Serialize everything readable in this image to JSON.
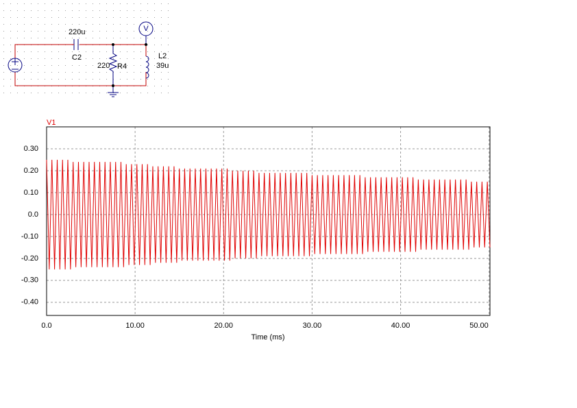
{
  "schematic": {
    "capacitor_value": "220u",
    "capacitor_name": "C2",
    "resistor_value": "220",
    "resistor_name": "R4",
    "inductor_name": "L2",
    "inductor_value": "39u",
    "meter": "V"
  },
  "chart_data": {
    "type": "line",
    "y_label": "V1",
    "x_label": "Time (ms)",
    "x": [
      0,
      0.3,
      0.6,
      0.9,
      1.2,
      1.5,
      1.8,
      2.1,
      2.4,
      2.7,
      3,
      3.3,
      3.6,
      3.9,
      4.2,
      4.5,
      4.8,
      5.1,
      5.4,
      5.7,
      6,
      6.3,
      6.6,
      6.9,
      7.2,
      7.5,
      7.8,
      8.1,
      8.4,
      8.7,
      9,
      9.3,
      9.6,
      9.9,
      10.2,
      10.5,
      10.8,
      11.1,
      11.4,
      11.7,
      12,
      12.3,
      12.6,
      12.9,
      13.2,
      13.5,
      13.8,
      14.1,
      14.4,
      14.7,
      15,
      15.3,
      15.6,
      15.9,
      16.2,
      16.5,
      16.8,
      17.1,
      17.4,
      17.7,
      18,
      18.3,
      18.6,
      18.9,
      19.2,
      19.5,
      19.8,
      20.1,
      20.4,
      20.7,
      21,
      21.3,
      21.6,
      21.9,
      22.2,
      22.5,
      22.8,
      23.1,
      23.4,
      23.7,
      24,
      24.3,
      24.6,
      24.9,
      25.2,
      25.5,
      25.8,
      26.1,
      26.4,
      26.7,
      27,
      27.3,
      27.6,
      27.9,
      28.2,
      28.5,
      28.8,
      29.1,
      29.4,
      29.7,
      30,
      30.3,
      30.6,
      30.9,
      31.2,
      31.5,
      31.8,
      32.1,
      32.4,
      32.7,
      33,
      33.3,
      33.6,
      33.9,
      34.2,
      34.5,
      34.8,
      35.1,
      35.4,
      35.7,
      36,
      36.3,
      36.6,
      36.9,
      37.2,
      37.5,
      37.8,
      38.1,
      38.4,
      38.7,
      39,
      39.3,
      39.6,
      39.9,
      40.2,
      40.5,
      40.8,
      41.1,
      41.4,
      41.7,
      42,
      42.3,
      42.6,
      42.9,
      43.2,
      43.5,
      43.8,
      44.1,
      44.4,
      44.7,
      45,
      45.3,
      45.6,
      45.9,
      46.2,
      46.5,
      46.8,
      47.1,
      47.4,
      47.7,
      48,
      48.3,
      48.6,
      48.9,
      49.2,
      49.5,
      49.8,
      50.1
    ],
    "series": [
      {
        "name": "V1",
        "color": "#e00000",
        "values": [
          0.25,
          -0.25,
          0.25,
          -0.25,
          0.25,
          -0.25,
          0.25,
          -0.25,
          0.25,
          -0.25,
          0.24,
          -0.24,
          0.24,
          -0.24,
          0.24,
          -0.24,
          0.24,
          -0.24,
          0.24,
          -0.24,
          0.24,
          -0.24,
          0.24,
          -0.24,
          0.24,
          -0.24,
          0.24,
          -0.24,
          0.24,
          -0.24,
          0.23,
          -0.23,
          0.23,
          -0.23,
          0.23,
          -0.23,
          0.23,
          -0.23,
          0.23,
          -0.23,
          0.22,
          -0.22,
          0.22,
          -0.22,
          0.22,
          -0.22,
          0.22,
          -0.22,
          0.22,
          -0.22,
          0.21,
          -0.21,
          0.21,
          -0.21,
          0.21,
          -0.21,
          0.21,
          -0.21,
          0.21,
          -0.21,
          0.21,
          -0.21,
          0.21,
          -0.21,
          0.21,
          -0.21,
          0.21,
          -0.21,
          0.21,
          -0.21,
          0.2,
          -0.2,
          0.2,
          -0.2,
          0.2,
          -0.2,
          0.2,
          -0.2,
          0.2,
          -0.2,
          0.19,
          -0.19,
          0.19,
          -0.19,
          0.19,
          -0.19,
          0.19,
          -0.19,
          0.19,
          -0.19,
          0.19,
          -0.19,
          0.19,
          -0.19,
          0.19,
          -0.19,
          0.19,
          -0.19,
          0.19,
          -0.19,
          0.18,
          -0.18,
          0.18,
          -0.18,
          0.18,
          -0.18,
          0.18,
          -0.18,
          0.18,
          -0.18,
          0.18,
          -0.18,
          0.18,
          -0.18,
          0.18,
          -0.18,
          0.18,
          -0.18,
          0.18,
          -0.18,
          0.17,
          -0.17,
          0.17,
          -0.17,
          0.17,
          -0.17,
          0.17,
          -0.17,
          0.17,
          -0.17,
          0.17,
          -0.17,
          0.17,
          -0.17,
          0.17,
          -0.17,
          0.17,
          -0.17,
          0.17,
          -0.17,
          0.16,
          -0.16,
          0.16,
          -0.16,
          0.16,
          -0.16,
          0.16,
          -0.16,
          0.16,
          -0.16,
          0.16,
          -0.16,
          0.16,
          -0.16,
          0.16,
          -0.16,
          0.16,
          -0.16,
          0.16,
          -0.16,
          0.15,
          -0.15,
          0.15,
          -0.15,
          0.15,
          -0.15,
          0.15,
          -0.15
        ]
      }
    ],
    "xlim": [
      0,
      50.1
    ],
    "ylim": [
      -0.46,
      0.4
    ],
    "xticks": [
      {
        "value": 0,
        "label": "0.0"
      },
      {
        "value": 10,
        "label": "10.00"
      },
      {
        "value": 20,
        "label": "20.00"
      },
      {
        "value": 30,
        "label": "30.00"
      },
      {
        "value": 40,
        "label": "40.00"
      },
      {
        "value": 50,
        "label": "50.00"
      }
    ],
    "yticks": [
      {
        "value": 0.3,
        "label": "0.30"
      },
      {
        "value": 0.2,
        "label": "0.20"
      },
      {
        "value": 0.1,
        "label": "0.10"
      },
      {
        "value": 0,
        "label": "0.0"
      },
      {
        "value": -0.1,
        "label": "-0.10"
      },
      {
        "value": -0.2,
        "label": "-0.20"
      },
      {
        "value": -0.3,
        "label": "-0.30"
      },
      {
        "value": -0.4,
        "label": "-0.40"
      }
    ],
    "grid": true
  }
}
